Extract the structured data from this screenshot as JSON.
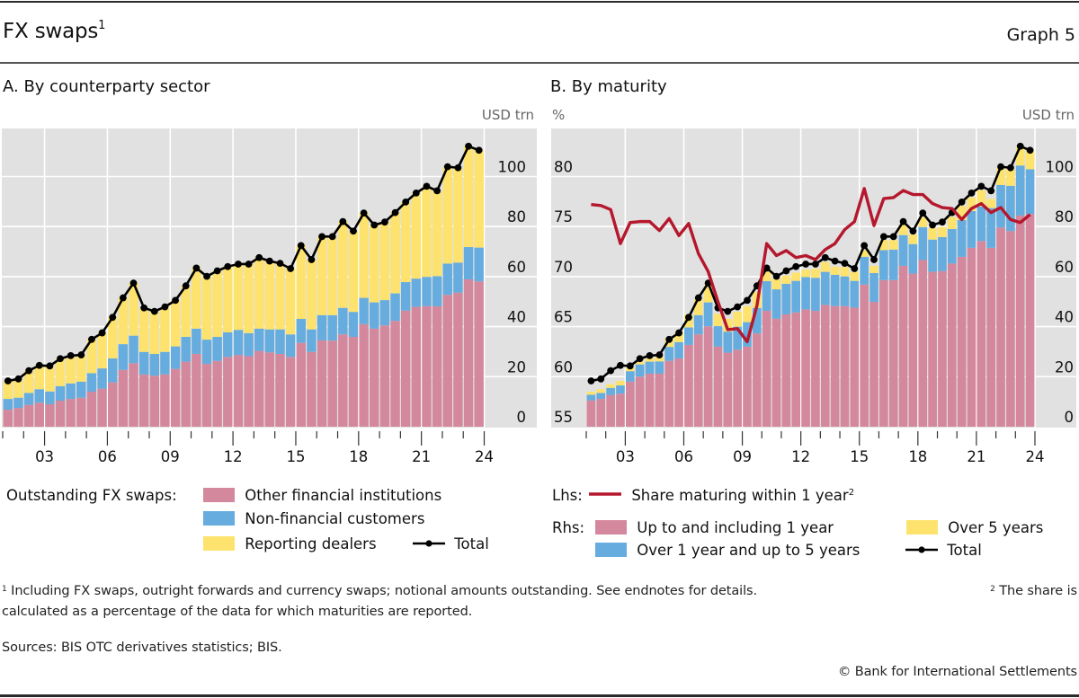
{
  "header": {
    "title": "FX swaps",
    "title_note": "1",
    "graph_number": "Graph 5"
  },
  "colors": {
    "pink": "#d4889d",
    "blue": "#66acde",
    "yellow": "#fde36d",
    "red": "#b5172d",
    "black": "#000000",
    "plot_bg": "#e1e1e1",
    "grid": "#ffffff"
  },
  "legend_a": {
    "prefix": "Outstanding FX swaps:",
    "items": [
      "Other financial institutions",
      "Non-financial customers",
      "Reporting dealers",
      "Total"
    ]
  },
  "legend_b": {
    "lhs_prefix": "Lhs:",
    "lhs_item": "Share maturing within 1 year",
    "lhs_note": "2",
    "rhs_prefix": "Rhs:",
    "items": [
      "Up to and including 1 year",
      "Over 1 year and up to 5 years",
      "Over 5 years",
      "Total"
    ]
  },
  "footnotes": {
    "n1_mark": "1",
    "n1": "Including FX swaps, outright forwards and currency swaps; notional amounts outstanding. See endnotes for details.",
    "n2_mark": "2",
    "n2_a": "The share is",
    "n2_b": "calculated as a percentage of the data for which maturities are reported.",
    "sources": "Sources: BIS OTC derivatives statistics; BIS.",
    "copyright": "© Bank for International Settlements"
  },
  "chart_data": [
    {
      "id": "A",
      "type": "bar",
      "stacked": true,
      "title": "A. By counterparty sector",
      "xlabel": "",
      "ylabel": "USD trn",
      "y_axis_side": "right",
      "ylim": [
        0,
        120
      ],
      "yticks": [
        0,
        20,
        40,
        60,
        80,
        100
      ],
      "x_start_year": 2001,
      "periods_per_year": 2,
      "xticks": [
        "03",
        "06",
        "09",
        "12",
        "15",
        "18",
        "21",
        "24"
      ],
      "xtick_years": [
        2003,
        2006,
        2009,
        2012,
        2015,
        2018,
        2021,
        2024
      ],
      "grid": true,
      "series": [
        {
          "name": "Other financial institutions",
          "color_key": "pink",
          "values": [
            6.8,
            7.5,
            8.7,
            9.6,
            9.0,
            10.4,
            11.1,
            11.6,
            14.0,
            15.2,
            17.7,
            22.7,
            25.4,
            20.9,
            20.4,
            20.9,
            23.1,
            26.0,
            29.1,
            25.1,
            26.3,
            27.9,
            28.7,
            28.2,
            30.3,
            29.7,
            29.1,
            27.9,
            33.5,
            29.9,
            34.5,
            34.4,
            36.9,
            35.9,
            41.0,
            39.2,
            40.5,
            42.3,
            46.4,
            47.9,
            48.2,
            48.1,
            52.7,
            53.6,
            58.9,
            58.1
          ]
        },
        {
          "name": "Non-financial customers",
          "color_key": "blue",
          "values": [
            4.3,
            4.1,
            4.8,
            5.4,
            5.1,
            5.8,
            6.2,
            6.4,
            7.4,
            8.1,
            9.6,
            10.3,
            11.0,
            9.0,
            8.7,
            9.0,
            9.0,
            9.9,
            10.1,
            9.7,
            9.6,
            9.8,
            10.0,
            9.2,
            8.9,
            9.2,
            9.8,
            9.0,
            9.6,
            9.0,
            10.1,
            10.2,
            10.6,
            10.0,
            10.5,
            10.5,
            10.1,
            11.0,
            11.4,
            11.3,
            11.7,
            12.1,
            12.5,
            12.0,
            12.9,
            13.5
          ]
        },
        {
          "name": "Reporting dealers",
          "color_key": "yellow",
          "values": [
            7.2,
            7.5,
            8.9,
            9.5,
            10.2,
            11.0,
            11.1,
            10.7,
            13.5,
            14.2,
            16.4,
            18.5,
            21.0,
            17.6,
            17.0,
            18.0,
            18.4,
            20.4,
            24.2,
            25.3,
            26.4,
            26.3,
            26.3,
            27.6,
            28.4,
            27.3,
            26.4,
            26.3,
            29.3,
            27.9,
            31.4,
            31.4,
            34.5,
            32.3,
            33.9,
            30.9,
            31.2,
            32.3,
            32.0,
            34.2,
            36.2,
            34.1,
            38.7,
            37.9,
            40.3,
            38.9
          ]
        }
      ],
      "lines": [
        {
          "name": "Total",
          "color_key": "black",
          "markers": true,
          "values": [
            18.3,
            19.1,
            22.4,
            24.5,
            24.3,
            27.2,
            28.4,
            28.7,
            34.9,
            37.5,
            43.7,
            51.5,
            57.4,
            47.5,
            46.1,
            47.9,
            50.5,
            56.3,
            63.4,
            60.1,
            62.3,
            64.0,
            65.0,
            65.0,
            67.6,
            66.2,
            65.3,
            63.2,
            72.4,
            66.8,
            76.0,
            76.0,
            82.0,
            78.2,
            85.4,
            80.6,
            81.8,
            85.6,
            89.8,
            93.4,
            96.1,
            94.3,
            103.9,
            103.5,
            112.1,
            110.5
          ]
        }
      ]
    },
    {
      "id": "B",
      "type": "bar",
      "stacked": true,
      "title": "B. By maturity",
      "xlabel": "",
      "ylabel_left": "%",
      "ylabel_right": "USD trn",
      "ylim_left": [
        55,
        85
      ],
      "yticks_left": [
        55,
        60,
        65,
        70,
        75,
        80
      ],
      "ylim_right": [
        0,
        120
      ],
      "yticks_right": [
        0,
        20,
        40,
        60,
        80,
        100
      ],
      "x_start_year": 2001,
      "periods_per_year": 2,
      "xticks": [
        "03",
        "06",
        "09",
        "12",
        "15",
        "18",
        "21",
        "24"
      ],
      "xtick_years": [
        2003,
        2006,
        2009,
        2012,
        2015,
        2018,
        2021,
        2024
      ],
      "grid": true,
      "series": [
        {
          "name": "Up to and including 1 year",
          "axis": "right",
          "color_key": "pink",
          "values": [
            10.5,
            11.1,
            12.6,
            13.2,
            18.0,
            20.0,
            21.2,
            21.2,
            26.3,
            27.3,
            32.7,
            36.9,
            40.1,
            32.0,
            29.6,
            30.8,
            32.0,
            37.3,
            46.3,
            43.2,
            44.9,
            45.7,
            46.9,
            46.3,
            48.7,
            48.2,
            48.2,
            47.6,
            56.8,
            49.9,
            58.6,
            58.6,
            64.3,
            61.2,
            66.6,
            61.9,
            62.2,
            65.2,
            67.9,
            71.5,
            74.2,
            71.5,
            79.6,
            78.2,
            84.4,
            85.0
          ]
        },
        {
          "name": "Over 1 year and up to 5 years",
          "axis": "right",
          "color_key": "blue",
          "values": [
            2.3,
            2.4,
            2.9,
            3.3,
            4.2,
            4.9,
            4.8,
            4.9,
            5.6,
            6.5,
            7.0,
            7.7,
            9.6,
            8.2,
            8.4,
            9.2,
            9.8,
            10.2,
            11.9,
            11.7,
            12.2,
            12.6,
            12.9,
            13.2,
            13.2,
            12.5,
            11.9,
            10.7,
            11.1,
            11.5,
            12.0,
            12.2,
            12.3,
            11.8,
            13.2,
            12.9,
            13.6,
            13.8,
            14.7,
            14.7,
            13.8,
            15.9,
            17.0,
            18.1,
            20.0,
            17.9
          ]
        },
        {
          "name": "Over 5 years",
          "axis": "right",
          "color_key": "yellow",
          "values": [
            1.2,
            1.5,
            1.5,
            1.8,
            1.4,
            1.1,
            1.3,
            1.8,
            3.4,
            3.9,
            5.2,
            6.5,
            6.9,
            4.9,
            5.1,
            5.9,
            6.4,
            6.4,
            4.0,
            4.3,
            3.3,
            3.3,
            3.0,
            3.6,
            3.9,
            3.3,
            3.7,
            3.6,
            2.7,
            2.9,
            4.0,
            3.8,
            4.0,
            3.9,
            4.0,
            4.6,
            4.0,
            4.8,
            5.6,
            5.4,
            6.5,
            3.6,
            6.9,
            6.6,
            7.3,
            7.2
          ]
        }
      ],
      "lines": [
        {
          "name": "Total",
          "axis": "right",
          "color_key": "black",
          "markers": true,
          "values": [
            18.3,
            19.1,
            22.4,
            24.5,
            24.3,
            27.2,
            28.4,
            28.7,
            34.9,
            37.5,
            43.7,
            51.5,
            57.4,
            47.5,
            46.1,
            47.9,
            50.5,
            56.3,
            63.4,
            60.1,
            62.3,
            64.0,
            65.0,
            65.0,
            67.6,
            66.2,
            65.3,
            63.2,
            72.4,
            66.8,
            76.0,
            76.0,
            82.0,
            78.2,
            85.4,
            80.6,
            81.8,
            85.6,
            89.8,
            93.4,
            96.1,
            94.3,
            103.9,
            103.5,
            112.1,
            110.5
          ]
        },
        {
          "name": "Share maturing within 1 year",
          "axis": "left",
          "color_key": "red",
          "markers": false,
          "values": [
            77.2,
            77.1,
            76.7,
            73.3,
            75.4,
            75.5,
            75.5,
            74.6,
            75.8,
            74.1,
            75.3,
            72.3,
            70.5,
            67.5,
            64.7,
            64.8,
            63.5,
            67.1,
            73.3,
            72.1,
            72.6,
            71.9,
            72.1,
            71.7,
            72.7,
            73.3,
            74.7,
            75.5,
            78.8,
            75.1,
            77.8,
            77.9,
            78.6,
            78.2,
            78.2,
            77.3,
            76.9,
            76.8,
            75.7,
            76.8,
            77.3,
            76.4,
            76.9,
            75.7,
            75.4,
            76.2
          ]
        }
      ]
    }
  ]
}
